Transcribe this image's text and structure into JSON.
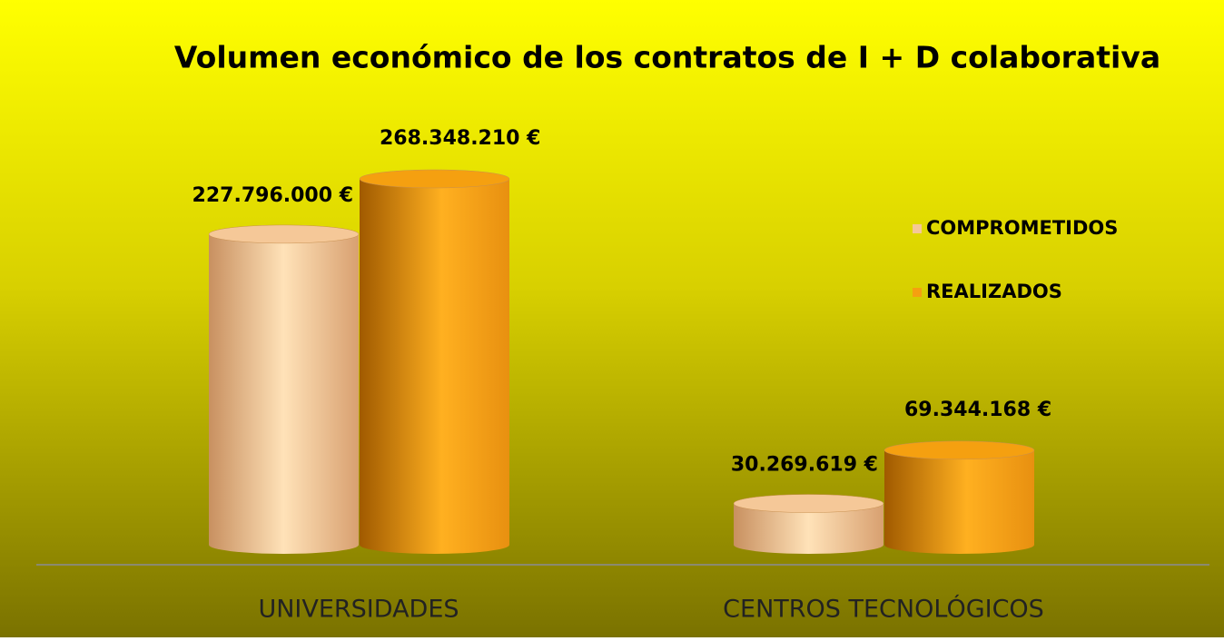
{
  "chart_data": {
    "type": "cylinder-bar",
    "title": "Volumen económico de los contratos de I + D colaborativa",
    "categories": [
      "UNIVERSIDADES",
      "CENTROS TECNOLÓGICOS"
    ],
    "series": [
      {
        "name": "COMPROMETIDOS",
        "color": "#f5c898",
        "values": [
          227796000,
          30269619
        ],
        "value_labels": [
          "227.796.000 €",
          "30.269.619 €"
        ]
      },
      {
        "name": "REALIZADOS",
        "color": "#f5a010",
        "values": [
          268348210,
          69344168
        ],
        "value_labels": [
          "268.348.210 €",
          "69.344.168 €"
        ]
      }
    ],
    "legend": "right"
  }
}
